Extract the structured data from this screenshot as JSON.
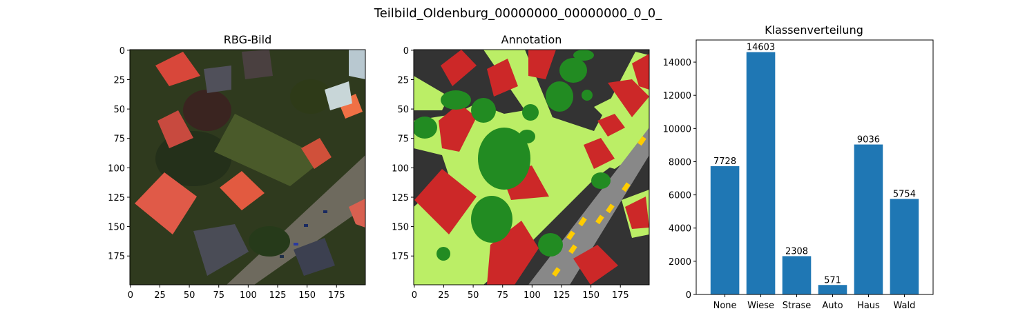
{
  "figure": {
    "suptitle": "Teilbild_Oldenburg_00000000_00000000_0_0_"
  },
  "panels": {
    "rgb": {
      "title": "RBG-Bild"
    },
    "annotation": {
      "title": "Annotation"
    }
  },
  "image_axes": {
    "x_ticks": [
      "0",
      "25",
      "50",
      "75",
      "100",
      "125",
      "150",
      "175"
    ],
    "y_ticks": [
      "0",
      "25",
      "50",
      "75",
      "100",
      "125",
      "150",
      "175"
    ],
    "range": [
      0,
      200
    ]
  },
  "colors": {
    "bar": "#1f77b4",
    "none": "#333333",
    "wiese": "#bbee66",
    "strase": "#888888",
    "auto": "#ffcc00",
    "haus": "#cc2828",
    "wald": "#228b22"
  },
  "chart_data": {
    "type": "bar",
    "title": "Klassenverteilung",
    "categories": [
      "None",
      "Wiese",
      "Strase",
      "Auto",
      "Haus",
      "Wald"
    ],
    "values": [
      7728,
      14603,
      2308,
      571,
      9036,
      5754
    ],
    "data_labels": [
      "7728",
      "14603",
      "2308",
      "571",
      "9036",
      "5754"
    ],
    "yticks": [
      "0",
      "2000",
      "4000",
      "6000",
      "8000",
      "10000",
      "12000",
      "14000"
    ],
    "ylim": [
      0,
      15333
    ],
    "xlabel": "",
    "ylabel": "",
    "grid": false
  }
}
